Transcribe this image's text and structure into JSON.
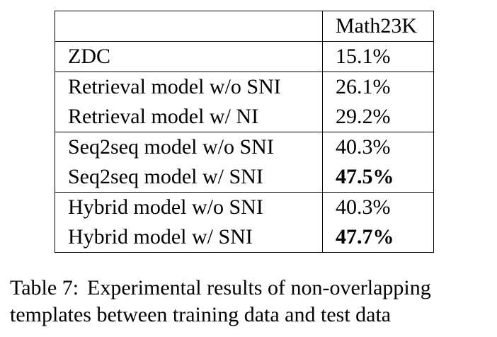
{
  "table": {
    "header": [
      "",
      "Math23K"
    ],
    "groups": [
      {
        "rows": [
          {
            "model": "ZDC",
            "score": "15.1%",
            "bold": false
          }
        ]
      },
      {
        "rows": [
          {
            "model": "Retrieval model w/o SNI",
            "score": "26.1%",
            "bold": false
          },
          {
            "model": "Retrieval model w/ NI",
            "score": "29.2%",
            "bold": false
          }
        ]
      },
      {
        "rows": [
          {
            "model": "Seq2seq model w/o SNI",
            "score": "40.3%",
            "bold": false
          },
          {
            "model": "Seq2seq model w/ SNI",
            "score": "47.5%",
            "bold": true
          }
        ]
      },
      {
        "rows": [
          {
            "model": "Hybrid model w/o SNI",
            "score": "40.3%",
            "bold": false
          },
          {
            "model": "Hybrid model w/ SNI",
            "score": "47.7%",
            "bold": true
          }
        ]
      }
    ]
  },
  "caption": {
    "label": "Table 7:",
    "text": "Experimental results of non-overlapping templates between training data and test data"
  }
}
